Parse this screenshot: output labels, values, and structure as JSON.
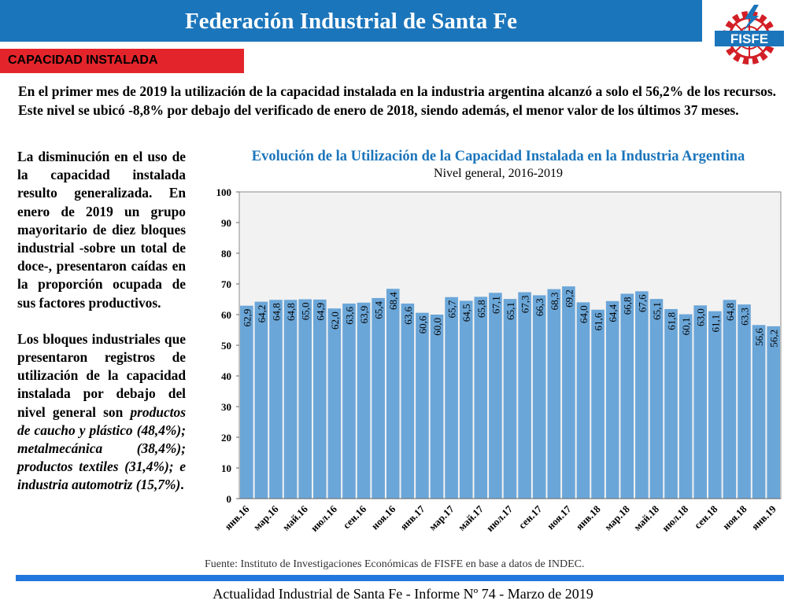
{
  "header": {
    "title": "Federación Industrial de Santa Fe"
  },
  "logo": {
    "text": "FISFE"
  },
  "section": {
    "label": "CAPACIDAD INSTALADA"
  },
  "intro": "En el primer mes de 2019 la utilización de la capacidad instalada en la industria argentina alcanzó a solo el 56,2% de los recursos.  Este nivel se ubicó -8,8% por debajo del verificado de enero de 2018, siendo además, el menor valor de los últimos 37 meses.",
  "left": {
    "p1": "La disminución en el uso de la capacidad instalada resulto generalizada. En enero de 2019 un grupo mayoritario de diez bloques industrial -sobre un total de doce-, presentaron caídas en la proporción ocupada de sus factores productivos.",
    "p2": "Los bloques industriales que presentaron registros de utilización de la capacidad instalada por debajo del nivel general son",
    "p2_italic": "productos de caucho y plástico (48,4%); metalmecánica (38,4%); productos textiles (31,4%); e industria automotriz (15,7%)",
    "p2_end": "."
  },
  "chart_data": {
    "type": "bar",
    "title": "Evolución de la Utilización de la Capacidad Instalada en la Industria Argentina",
    "subtitle": "Nivel general, 2016-2019",
    "ylim": [
      0,
      100
    ],
    "yticks": [
      0,
      10,
      20,
      30,
      40,
      50,
      60,
      70,
      80,
      90,
      100
    ],
    "grid": false,
    "bar_color": "#6ba6d8",
    "values": [
      62.9,
      64.2,
      64.8,
      64.8,
      65.0,
      64.9,
      62.0,
      63.6,
      63.9,
      65.4,
      68.4,
      63.6,
      60.6,
      60.0,
      65.7,
      64.5,
      65.8,
      67.1,
      65.1,
      67.3,
      66.3,
      68.3,
      69.2,
      64.0,
      61.6,
      64.4,
      66.8,
      67.6,
      65.1,
      61.8,
      60.1,
      63.0,
      61.1,
      64.8,
      63.3,
      56.6,
      56.2
    ],
    "value_labels": [
      "62,9",
      "64,2",
      "64,8",
      "64,8",
      "65,0",
      "64,9",
      "62,0",
      "63,6",
      "63,9",
      "65,4",
      "68,4",
      "63,6",
      "60,6",
      "60,0",
      "65,7",
      "64,5",
      "65,8",
      "67,1",
      "65,1",
      "67,3",
      "66,3",
      "68,3",
      "69,2",
      "64,0",
      "61,6",
      "64,4",
      "66,8",
      "67,6",
      "65,1",
      "61,8",
      "60,1",
      "63,0",
      "61,1",
      "64,8",
      "63,3",
      "56,6",
      "56,2"
    ],
    "categories": [
      "янв.16",
      "",
      "мар.16",
      "",
      "май.16",
      "",
      "июл.16",
      "",
      "сен.16",
      "",
      "ноя.16",
      "",
      "янв.17",
      "",
      "мар.17",
      "",
      "май.17",
      "",
      "июл.17",
      "",
      "сен.17",
      "",
      "ноя.17",
      "",
      "янв.18",
      "",
      "мар.18",
      "",
      "май.18",
      "",
      "июл.18",
      "",
      "сен.18",
      "",
      "ноя.18",
      "",
      "янв.19"
    ]
  },
  "source": "Fuente: Instituto de Investigaciones Económicas de FISFE en base a datos de INDEC.",
  "footer": "Actualidad Industrial de Santa Fe - Informe Nº 74 - Marzo de 2019"
}
